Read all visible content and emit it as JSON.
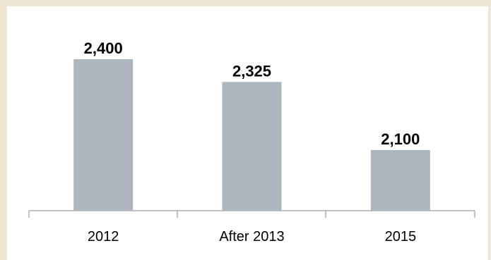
{
  "colors": {
    "background_border": "#efe6d3",
    "panel": "#ffffff",
    "bar": "#adb5bf",
    "axis": "#8a8a8a"
  },
  "chart_data": {
    "type": "bar",
    "title": "",
    "xlabel": "",
    "ylabel": "",
    "categories": [
      "2012",
      "After 2013",
      "2015"
    ],
    "series": [
      {
        "values": [
          2400,
          2325,
          2100
        ]
      }
    ],
    "data_labels": [
      "2,400",
      "2,325",
      "2,100"
    ],
    "ylim": [
      1900,
      2400
    ],
    "grid": false,
    "legend": "none"
  }
}
